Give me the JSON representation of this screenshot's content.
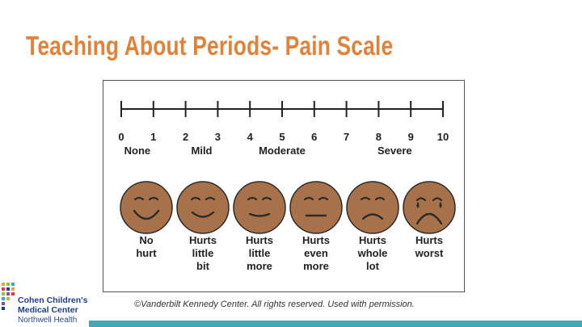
{
  "title": "Teaching About Periods- Pain Scale",
  "scale": {
    "ticks": [
      "0",
      "1",
      "2",
      "3",
      "4",
      "5",
      "6",
      "7",
      "8",
      "9",
      "10"
    ],
    "categories": [
      {
        "label": "None",
        "at": 0.5
      },
      {
        "label": "Mild",
        "at": 2.5
      },
      {
        "label": "Moderate",
        "at": 5
      },
      {
        "label": "Severe",
        "at": 8.5
      }
    ]
  },
  "faces": [
    {
      "lines": [
        "No",
        "hurt"
      ],
      "expression": "big-smile"
    },
    {
      "lines": [
        "Hurts",
        "little",
        "bit"
      ],
      "expression": "smile"
    },
    {
      "lines": [
        "Hurts",
        "little",
        "more"
      ],
      "expression": "slight-smile"
    },
    {
      "lines": [
        "Hurts",
        "even",
        "more"
      ],
      "expression": "neutral"
    },
    {
      "lines": [
        "Hurts",
        "whole",
        "lot"
      ],
      "expression": "frown"
    },
    {
      "lines": [
        "Hurts",
        "worst"
      ],
      "expression": "cry"
    }
  ],
  "colors": {
    "title": "#e0823a",
    "face_fill": "#a77249",
    "face_stroke": "#2b2b2b",
    "bar": "#45a7b6",
    "logo": "#1d3f8f"
  },
  "copyright": "©Vanderbilt Kennedy Center. All rights reserved. Used with permission.",
  "logo": {
    "line1": "Cohen Children's",
    "line2": "Medical Center",
    "line3": "Northwell Health",
    "icon": "colorful-dot-grid-icon"
  }
}
